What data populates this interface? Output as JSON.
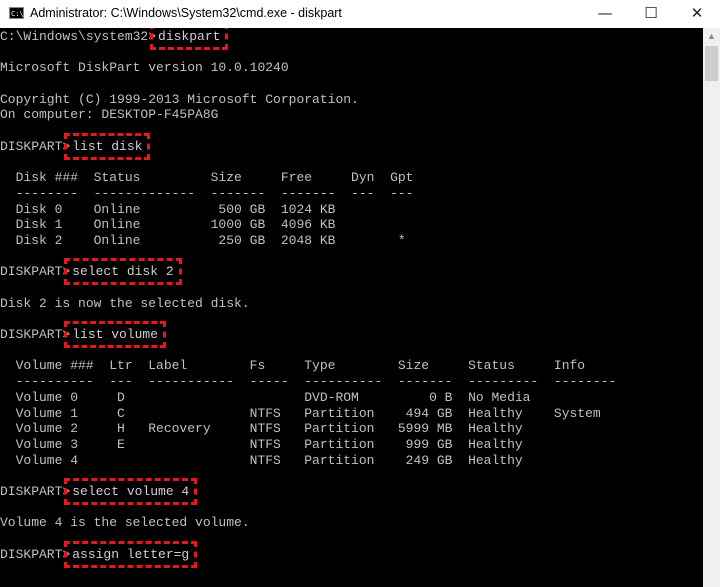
{
  "window": {
    "title": "Administrator: C:\\Windows\\System32\\cmd.exe - diskpart",
    "icon_label": "C:\\",
    "minimize": "—",
    "maximize": "☐",
    "close": "✕"
  },
  "accent_color": "#e5191c",
  "console": {
    "lines": [
      {
        "prompt": "C:\\Windows\\system32>",
        "command": "diskpart"
      },
      {
        "text": ""
      },
      {
        "text": "Microsoft DiskPart version 10.0.10240"
      },
      {
        "text": ""
      },
      {
        "text": "Copyright (C) 1999-2013 Microsoft Corporation."
      },
      {
        "text": "On computer: DESKTOP-F45PA8G"
      },
      {
        "text": ""
      },
      {
        "prompt": "DISKPART>",
        "command": "list disk"
      },
      {
        "text": ""
      },
      {
        "text": "  Disk ###  Status         Size     Free     Dyn  Gpt"
      },
      {
        "text": "  --------  -------------  -------  -------  ---  ---"
      },
      {
        "text": "  Disk 0    Online          500 GB  1024 KB"
      },
      {
        "text": "  Disk 1    Online         1000 GB  4096 KB"
      },
      {
        "text": "  Disk 2    Online          250 GB  2048 KB        *"
      },
      {
        "text": ""
      },
      {
        "prompt": "DISKPART>",
        "command": "select disk 2"
      },
      {
        "text": ""
      },
      {
        "text": "Disk 2 is now the selected disk."
      },
      {
        "text": ""
      },
      {
        "prompt": "DISKPART>",
        "command": "list volume"
      },
      {
        "text": ""
      },
      {
        "text": "  Volume ###  Ltr  Label        Fs     Type        Size     Status     Info"
      },
      {
        "text": "  ----------  ---  -----------  -----  ----------  -------  ---------  --------"
      },
      {
        "text": "  Volume 0     D                       DVD-ROM         0 B  No Media"
      },
      {
        "text": "  Volume 1     C                NTFS   Partition    494 GB  Healthy    System"
      },
      {
        "text": "  Volume 2     H   Recovery     NTFS   Partition   5999 MB  Healthy"
      },
      {
        "text": "  Volume 3     E                NTFS   Partition    999 GB  Healthy"
      },
      {
        "text": "  Volume 4                      NTFS   Partition    249 GB  Healthy"
      },
      {
        "text": ""
      },
      {
        "prompt": "DISKPART>",
        "command": "select volume 4"
      },
      {
        "text": ""
      },
      {
        "text": "Volume 4 is the selected volume."
      },
      {
        "text": ""
      },
      {
        "prompt": "DISKPART>",
        "command": "assign letter=g"
      }
    ]
  }
}
